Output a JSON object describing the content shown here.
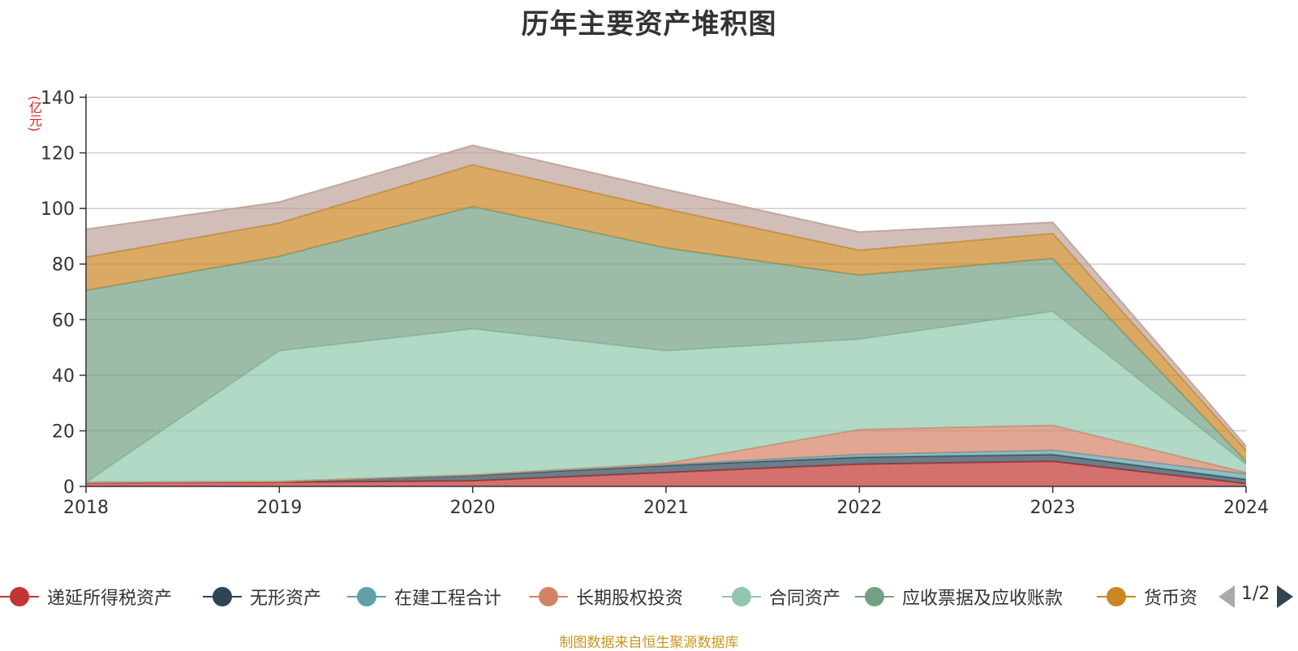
{
  "source_note": "制图数据来自恒生聚源数据库",
  "pager": {
    "text": "1/2"
  },
  "chart_data": {
    "type": "area",
    "stacked": true,
    "title": "历年主要资产堆积图",
    "unit": "(亿元)",
    "x": [
      "2018",
      "2019",
      "2020",
      "2021",
      "2022",
      "2023",
      "2024"
    ],
    "ylim": [
      0,
      140
    ],
    "yticks": [
      0,
      20,
      40,
      60,
      80,
      100,
      120,
      140
    ],
    "grid": true,
    "legend_position": "bottom",
    "series": [
      {
        "name": "递延所得税资产",
        "color": "#c23531",
        "values": [
          1.3,
          1.5,
          2.0,
          5.0,
          8.0,
          9.0,
          1.0
        ]
      },
      {
        "name": "无形资产",
        "color": "#2f4554",
        "values": [
          0.2,
          0.3,
          2.0,
          2.5,
          2.5,
          2.5,
          1.5
        ]
      },
      {
        "name": "在建工程合计",
        "color": "#61a0a8",
        "values": [
          0.0,
          0.0,
          0.2,
          0.3,
          1.0,
          1.5,
          2.0
        ]
      },
      {
        "name": "长期股权投资",
        "color": "#d48265",
        "values": [
          0.0,
          0.0,
          0.0,
          0.5,
          9.0,
          9.0,
          0.5
        ]
      },
      {
        "name": "合同资产",
        "color": "#91c7ae",
        "values": [
          0.0,
          47.0,
          52.5,
          40.5,
          32.5,
          41.0,
          3.0
        ]
      },
      {
        "name": "应收票据及应收账款",
        "color": "#749f83",
        "values": [
          69.0,
          34.0,
          44.0,
          37.0,
          23.0,
          19.0,
          1.0
        ]
      },
      {
        "name": "货币资",
        "color": "#ca8622",
        "values": [
          12.0,
          12.0,
          15.0,
          14.0,
          9.0,
          9.0,
          4.0
        ]
      },
      {
        "name": "",
        "color": "#bda29a",
        "values": [
          10.0,
          7.5,
          7.0,
          7.0,
          6.5,
          4.0,
          1.5
        ]
      }
    ]
  }
}
